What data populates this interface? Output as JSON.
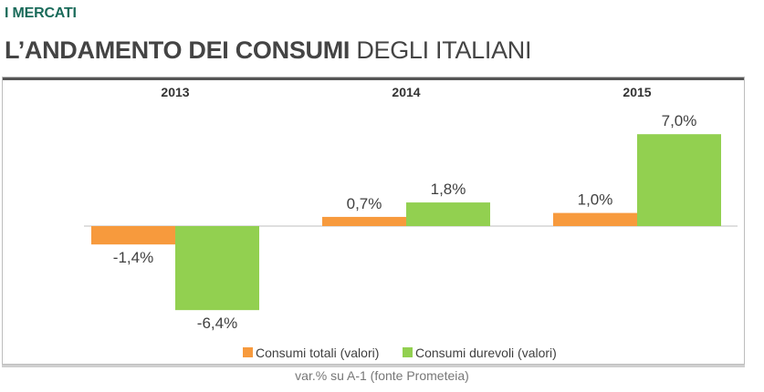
{
  "header": {
    "kicker": "I MERCATI",
    "title_bold": "L’ANDAMENTO DEI CONSUMI",
    "title_rest": "DEGLI ITALIANI"
  },
  "source_note": "var.% su A-1 (fonte Prometeia)",
  "colors": {
    "orange": "#f79a3d",
    "green": "#92d050",
    "axis": "#bfbfbf",
    "kicker": "#1a6b5a"
  },
  "chart_data": {
    "type": "bar",
    "categories": [
      "2013",
      "2014",
      "2015"
    ],
    "series": [
      {
        "name": "Consumi totali (valori)",
        "values": [
          -1.4,
          0.7,
          1.0
        ],
        "labels": [
          "-1,4%",
          "0,7%",
          "1,0%"
        ]
      },
      {
        "name": "Consumi durevoli (valori)",
        "values": [
          -6.4,
          1.8,
          7.0
        ],
        "labels": [
          "-6,4%",
          "1,8%",
          "7,0%"
        ]
      }
    ],
    "legend": "bottom",
    "grid": false
  }
}
